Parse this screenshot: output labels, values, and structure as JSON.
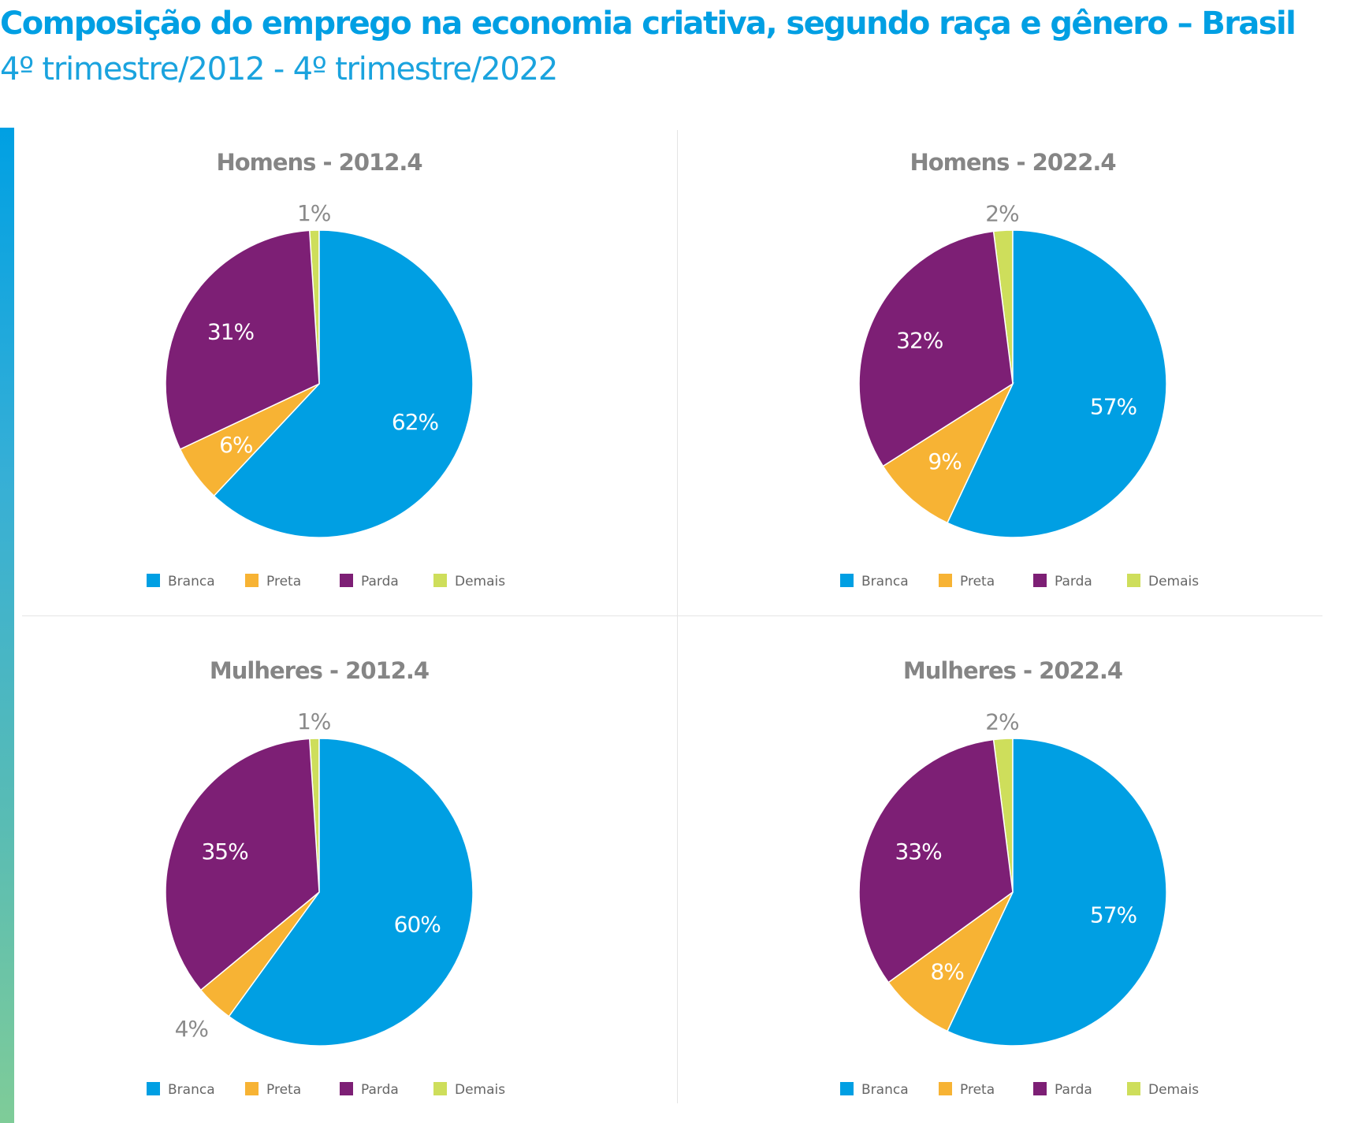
{
  "title": "Composição do emprego na economia criativa, segundo raça e gênero – Brasil",
  "subtitle": "4º trimestre/2012 - 4º trimestre/2022",
  "legend": [
    {
      "label": "Branca",
      "color": "#009fe3"
    },
    {
      "label": "Preta",
      "color": "#f7b334"
    },
    {
      "label": "Parda",
      "color": "#7d1f75"
    },
    {
      "label": "Demais",
      "color": "#cede5b"
    }
  ],
  "chart_data": [
    {
      "type": "pie",
      "title": "Homens - 2012.4",
      "categories": [
        "Branca",
        "Preta",
        "Parda",
        "Demais"
      ],
      "values": [
        62,
        6,
        31,
        1
      ],
      "labels": [
        "62%",
        "6%",
        "31%",
        "1%"
      ]
    },
    {
      "type": "pie",
      "title": "Homens - 2022.4",
      "categories": [
        "Branca",
        "Preta",
        "Parda",
        "Demais"
      ],
      "values": [
        57,
        9,
        32,
        2
      ],
      "labels": [
        "57%",
        "9%",
        "32%",
        "2%"
      ]
    },
    {
      "type": "pie",
      "title": "Mulheres - 2012.4",
      "categories": [
        "Branca",
        "Preta",
        "Parda",
        "Demais"
      ],
      "values": [
        60,
        4,
        35,
        1
      ],
      "labels": [
        "60%",
        "4%",
        "35%",
        "1%"
      ]
    },
    {
      "type": "pie",
      "title": "Mulheres - 2022.4",
      "categories": [
        "Branca",
        "Preta",
        "Parda",
        "Demais"
      ],
      "values": [
        57,
        8,
        33,
        2
      ],
      "labels": [
        "57%",
        "8%",
        "33%",
        "2%"
      ]
    }
  ]
}
